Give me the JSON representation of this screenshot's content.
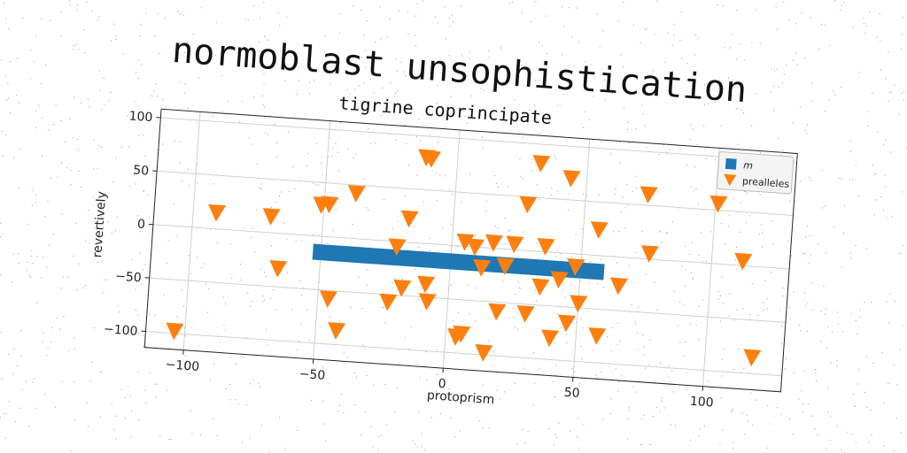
{
  "title": "normoblast unsophistication",
  "chart_data": {
    "type": "scatter",
    "subtitle": "tigrine coprincipate",
    "xlabel": "protoprism",
    "ylabel": "revertively",
    "xlim": [
      -115,
      130
    ],
    "ylim": [
      -115,
      108
    ],
    "xticks": [
      "−100",
      "−50",
      "0",
      "50",
      "100"
    ],
    "yticks": [
      "100",
      "50",
      "0",
      "−50",
      "−100"
    ],
    "grid": true,
    "legend_position": "top-right",
    "series": [
      {
        "name": "m",
        "marker": "square",
        "color": "#1f77b4",
        "x": [
          -50,
          -44,
          -38,
          -32,
          -26,
          -20,
          -14,
          -8,
          -2,
          4,
          10,
          16,
          22,
          28,
          34,
          40,
          46,
          52,
          56
        ],
        "y": [
          -15,
          -15,
          -15,
          -15,
          -15,
          -15,
          -15,
          -15,
          -15,
          -15,
          -15,
          -15,
          -15,
          -15,
          -15,
          -15,
          -15,
          -15,
          -15
        ]
      },
      {
        "name": "prealleles",
        "marker": "triangle-down",
        "color": "#ff7f0e",
        "x": [
          -104,
          -91,
          -70,
          -66,
          -51,
          -48,
          -46,
          -42,
          -38,
          -23,
          -21,
          -18,
          -17,
          -12,
          -10,
          -9,
          -8,
          4,
          5,
          6,
          9,
          12,
          15,
          16,
          19,
          21,
          24,
          28,
          30,
          32,
          35,
          36,
          40,
          42,
          44,
          46,
          48,
          50,
          56,
          58,
          65,
          74,
          76,
          101,
          112,
          118
        ],
        "y": [
          -98,
          15,
          15,
          -33,
          29,
          30,
          -58,
          -87,
          42,
          -57,
          -5,
          -43,
          22,
          80,
          79,
          -38,
          -54,
          -85,
          4,
          -82,
          0,
          -19,
          -98,
          5,
          -59,
          -16,
          5,
          43,
          -59,
          82,
          -33,
          5,
          -80,
          -25,
          70,
          -65,
          -12,
          -46,
          24,
          -75,
          -27,
          60,
          5,
          56,
          4,
          -85
        ]
      }
    ]
  }
}
